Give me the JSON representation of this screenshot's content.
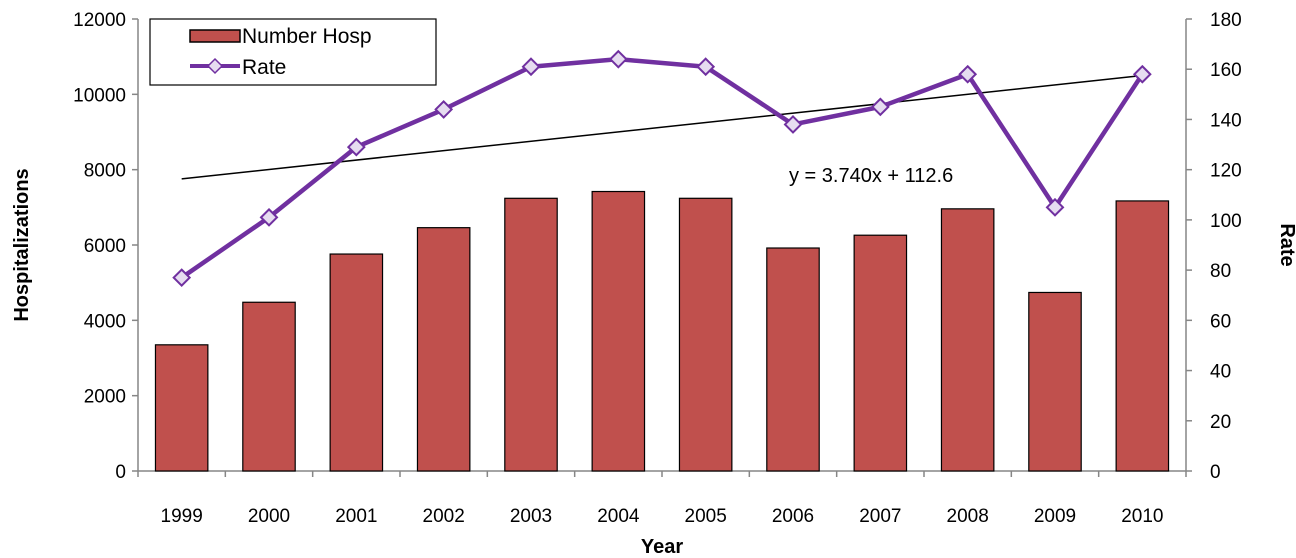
{
  "chart_data": {
    "type": "bar",
    "categories": [
      "1999",
      "2000",
      "2001",
      "2002",
      "2003",
      "2004",
      "2005",
      "2006",
      "2007",
      "2008",
      "2009",
      "2010"
    ],
    "series": [
      {
        "name": "Number Hosp",
        "type": "bar",
        "axis": "left",
        "color": "#C0504D",
        "values": [
          3350,
          4480,
          5760,
          6460,
          7240,
          7420,
          7240,
          5920,
          6260,
          6960,
          4740,
          7170
        ]
      },
      {
        "name": "Rate",
        "type": "line",
        "axis": "right",
        "color": "#7030A0",
        "marker": "diamond",
        "marker_fill": "#E6DCF0",
        "values": [
          77,
          101,
          129,
          144,
          161,
          164,
          161,
          138,
          145,
          158,
          105,
          158
        ]
      }
    ],
    "trendline": {
      "axis": "right",
      "slope": 3.74,
      "intercept": 112.6,
      "color": "#000000",
      "label": "y = 3.740x + 112.6"
    },
    "xlabel": "Year",
    "ylabel": "Hospitalizations",
    "y2label": "Rate",
    "ylim": [
      0,
      12000
    ],
    "y2lim": [
      0,
      180
    ],
    "yticks": [
      "0",
      "2000",
      "4000",
      "6000",
      "8000",
      "10000",
      "12000"
    ],
    "y2ticks": [
      "0",
      "20",
      "40",
      "60",
      "80",
      "100",
      "120",
      "140",
      "160",
      "180"
    ],
    "legend": {
      "position": "top-left",
      "entries": [
        "Number Hosp",
        "Rate"
      ]
    },
    "grid": false
  }
}
